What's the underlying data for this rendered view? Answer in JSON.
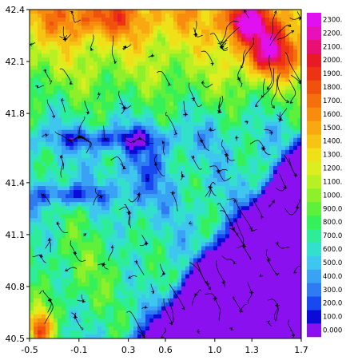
{
  "chart_data": {
    "type": "heatmap",
    "title": "",
    "xlabel": "",
    "ylabel": "",
    "xlim": [
      -0.5,
      1.7
    ],
    "ylim": [
      40.5,
      42.4
    ],
    "x_ticks": [
      -0.5,
      -0.1,
      0.3,
      0.6,
      1.0,
      1.3,
      1.7
    ],
    "x_tick_labels": [
      "-0.5",
      "-0.1",
      "0.3",
      "0.6",
      "1.0",
      "1.3",
      "1.7"
    ],
    "y_ticks": [
      40.5,
      40.8,
      41.1,
      41.4,
      41.8,
      42.1,
      42.4
    ],
    "y_tick_labels": [
      "40.5",
      "40.8",
      "41.1",
      "41.4",
      "41.8",
      "42.1",
      "42.4"
    ],
    "overlay": "streamlines",
    "grid": false,
    "colorbar": {
      "placement": "right",
      "levels": [
        0,
        100,
        200,
        300,
        400,
        500,
        600,
        700,
        800,
        900,
        1000,
        1100,
        1200,
        1300,
        1400,
        1500,
        1600,
        1700,
        1800,
        1900,
        2000,
        2100,
        2200,
        2300
      ],
      "labels": [
        "0.000",
        "100.0",
        "200.0",
        "300.0",
        "400.0",
        "500.0",
        "600.0",
        "700.0",
        "800.0",
        "900.0",
        "1000.",
        "1100.",
        "1200.",
        "1300.",
        "1400.",
        "1500.",
        "1600.",
        "1700.",
        "1800.",
        "1900.",
        "2000.",
        "2100.",
        "2200.",
        "2300."
      ],
      "colors": [
        "#8a10f0",
        "#0b0bd8",
        "#1848f0",
        "#2f7cf2",
        "#3aa2f5",
        "#3ec6ef",
        "#33e0cc",
        "#2ded98",
        "#36f05a",
        "#5ef03a",
        "#8ef02a",
        "#b8f024",
        "#dcee20",
        "#f0e018",
        "#f5c414",
        "#f8a810",
        "#f88c0e",
        "#f4700c",
        "#f0520e",
        "#ec3414",
        "#e81a26",
        "#e81070",
        "#e810b8",
        "#e010f0"
      ]
    }
  }
}
